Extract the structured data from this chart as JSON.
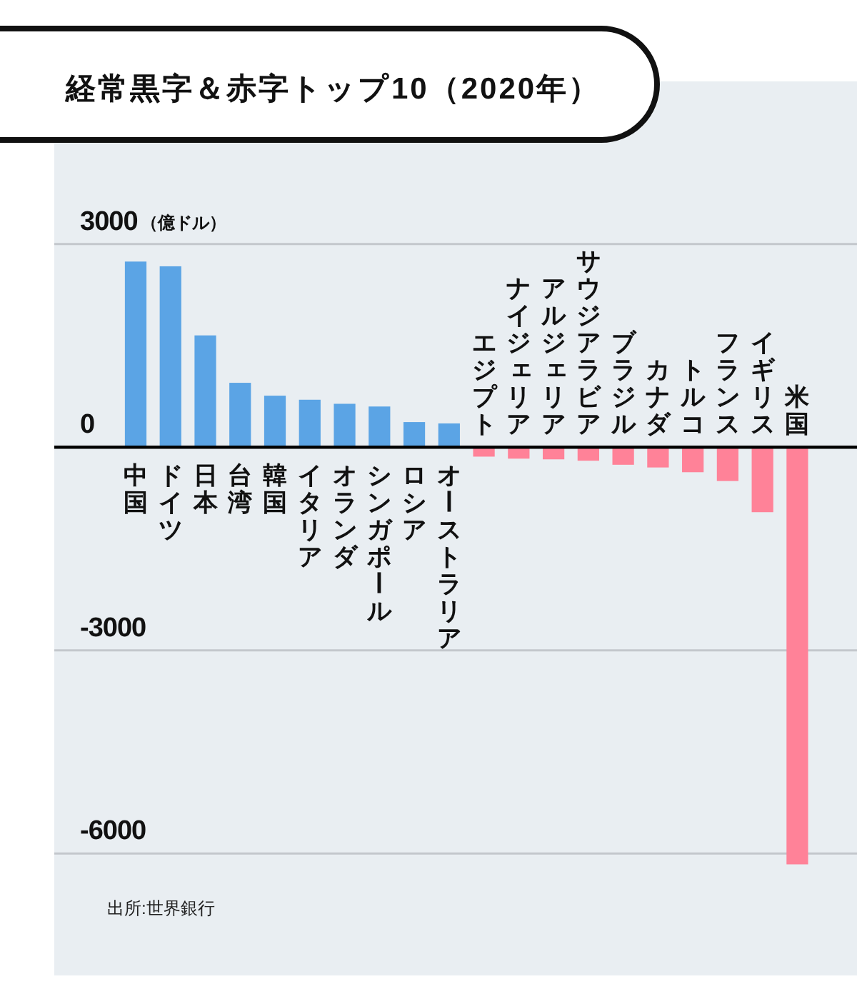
{
  "chart_data": {
    "type": "bar",
    "title": "経常黒字＆赤字トップ10（2020年）",
    "ylabel": "（億ドル）",
    "categories": [
      "中国",
      "ドイツ",
      "日本",
      "台湾",
      "韓国",
      "イタリア",
      "オランダ",
      "シンガポール",
      "ロシア",
      "オーストラリア",
      "エジプト",
      "ナイジェリア",
      "アルジェリア",
      "サウジアラビア",
      "ブラジル",
      "カナダ",
      "トルコ",
      "フランス",
      "イギリス",
      "米国"
    ],
    "values": [
      2740,
      2670,
      1650,
      950,
      760,
      700,
      640,
      600,
      370,
      350,
      -140,
      -170,
      -180,
      -200,
      -260,
      -300,
      -370,
      -500,
      -960,
      -6160
    ],
    "colors": [
      "#5ba4e5",
      "#5ba4e5",
      "#5ba4e5",
      "#5ba4e5",
      "#5ba4e5",
      "#5ba4e5",
      "#5ba4e5",
      "#5ba4e5",
      "#5ba4e5",
      "#5ba4e5",
      "#ff8298",
      "#ff8298",
      "#ff8298",
      "#ff8298",
      "#ff8298",
      "#ff8298",
      "#ff8298",
      "#ff8298",
      "#ff8298",
      "#ff8298"
    ],
    "ylim": [
      -7800,
      5400
    ],
    "yticks": [
      3000,
      0,
      -3000,
      -6000
    ],
    "grid": "y",
    "annotations": [
      "出所:世界銀行"
    ]
  }
}
